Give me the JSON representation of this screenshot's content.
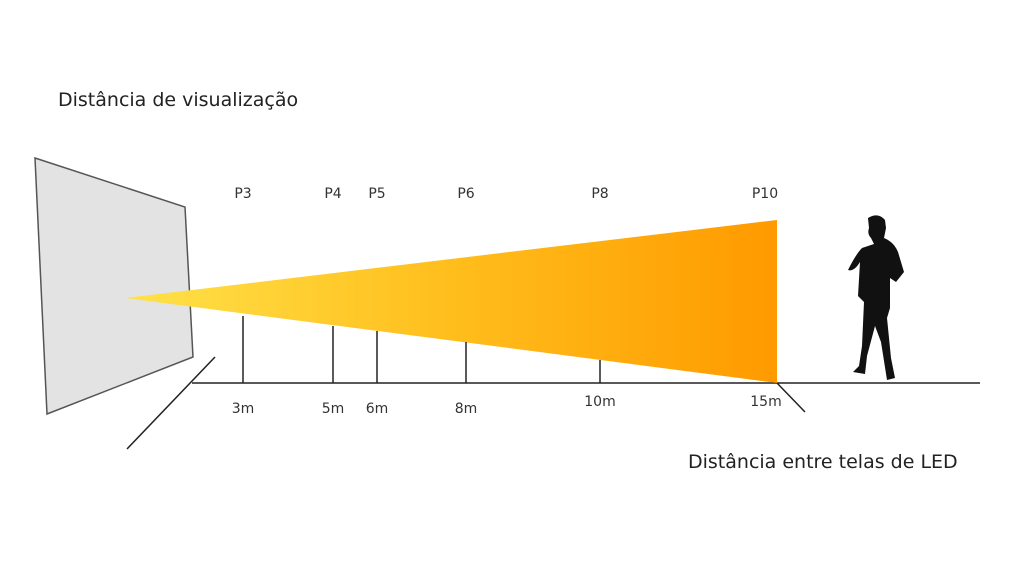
{
  "header": {
    "title": "Distância de visualização"
  },
  "caption": "Distância entre telas de LED",
  "markers": [
    {
      "pitch": "P3",
      "distance": "3m"
    },
    {
      "pitch": "P4",
      "distance": "5m"
    },
    {
      "pitch": "P5",
      "distance": "6m"
    },
    {
      "pitch": "P6",
      "distance": "8m"
    },
    {
      "pitch": "P8",
      "distance": "10m"
    },
    {
      "pitch": "P10",
      "distance": "15m"
    }
  ]
}
